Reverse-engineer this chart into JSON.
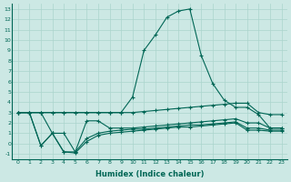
{
  "xlabel": "Humidex (Indice chaleur)",
  "x": [
    0,
    1,
    2,
    3,
    4,
    5,
    6,
    7,
    8,
    9,
    10,
    11,
    12,
    13,
    14,
    15,
    16,
    17,
    18,
    19,
    20,
    21,
    22,
    23
  ],
  "line_peak": [
    3.0,
    3.0,
    3.0,
    3.0,
    3.0,
    3.0,
    3.0,
    3.0,
    3.0,
    3.0,
    4.5,
    9.0,
    10.5,
    12.2,
    12.8,
    13.0,
    8.5,
    5.8,
    4.2,
    3.5,
    3.5,
    2.8,
    1.5,
    1.5
  ],
  "line_top": [
    3.0,
    3.0,
    3.0,
    3.0,
    3.0,
    3.0,
    3.0,
    3.0,
    3.0,
    3.0,
    3.0,
    3.1,
    3.2,
    3.3,
    3.4,
    3.5,
    3.6,
    3.7,
    3.8,
    3.9,
    3.9,
    3.0,
    2.8,
    2.8
  ],
  "line_mid": [
    3.0,
    3.0,
    3.0,
    1.0,
    1.0,
    -0.8,
    2.2,
    2.2,
    1.5,
    1.5,
    1.5,
    1.6,
    1.7,
    1.8,
    1.9,
    2.0,
    2.1,
    2.2,
    2.3,
    2.4,
    2.0,
    2.0,
    1.5,
    1.5
  ],
  "line_low2": [
    3.0,
    3.0,
    -0.2,
    1.0,
    -0.8,
    -0.8,
    0.5,
    1.0,
    1.2,
    1.3,
    1.4,
    1.4,
    1.5,
    1.6,
    1.7,
    1.8,
    1.8,
    1.9,
    2.0,
    2.1,
    1.5,
    1.5,
    1.3,
    1.3
  ],
  "line_low3": [
    3.0,
    3.0,
    -0.2,
    1.0,
    -0.8,
    -0.9,
    0.2,
    0.8,
    1.0,
    1.1,
    1.2,
    1.3,
    1.4,
    1.5,
    1.6,
    1.6,
    1.7,
    1.8,
    1.9,
    2.0,
    1.3,
    1.3,
    1.2,
    1.2
  ],
  "bg_color": "#cce8e4",
  "grid_color": "#aad4cc",
  "line_color": "#006655",
  "ylim": [
    -1.5,
    13.5
  ],
  "xlim": [
    -0.5,
    23.5
  ],
  "yticks": [
    -1,
    0,
    1,
    2,
    3,
    4,
    5,
    6,
    7,
    8,
    9,
    10,
    11,
    12,
    13
  ]
}
